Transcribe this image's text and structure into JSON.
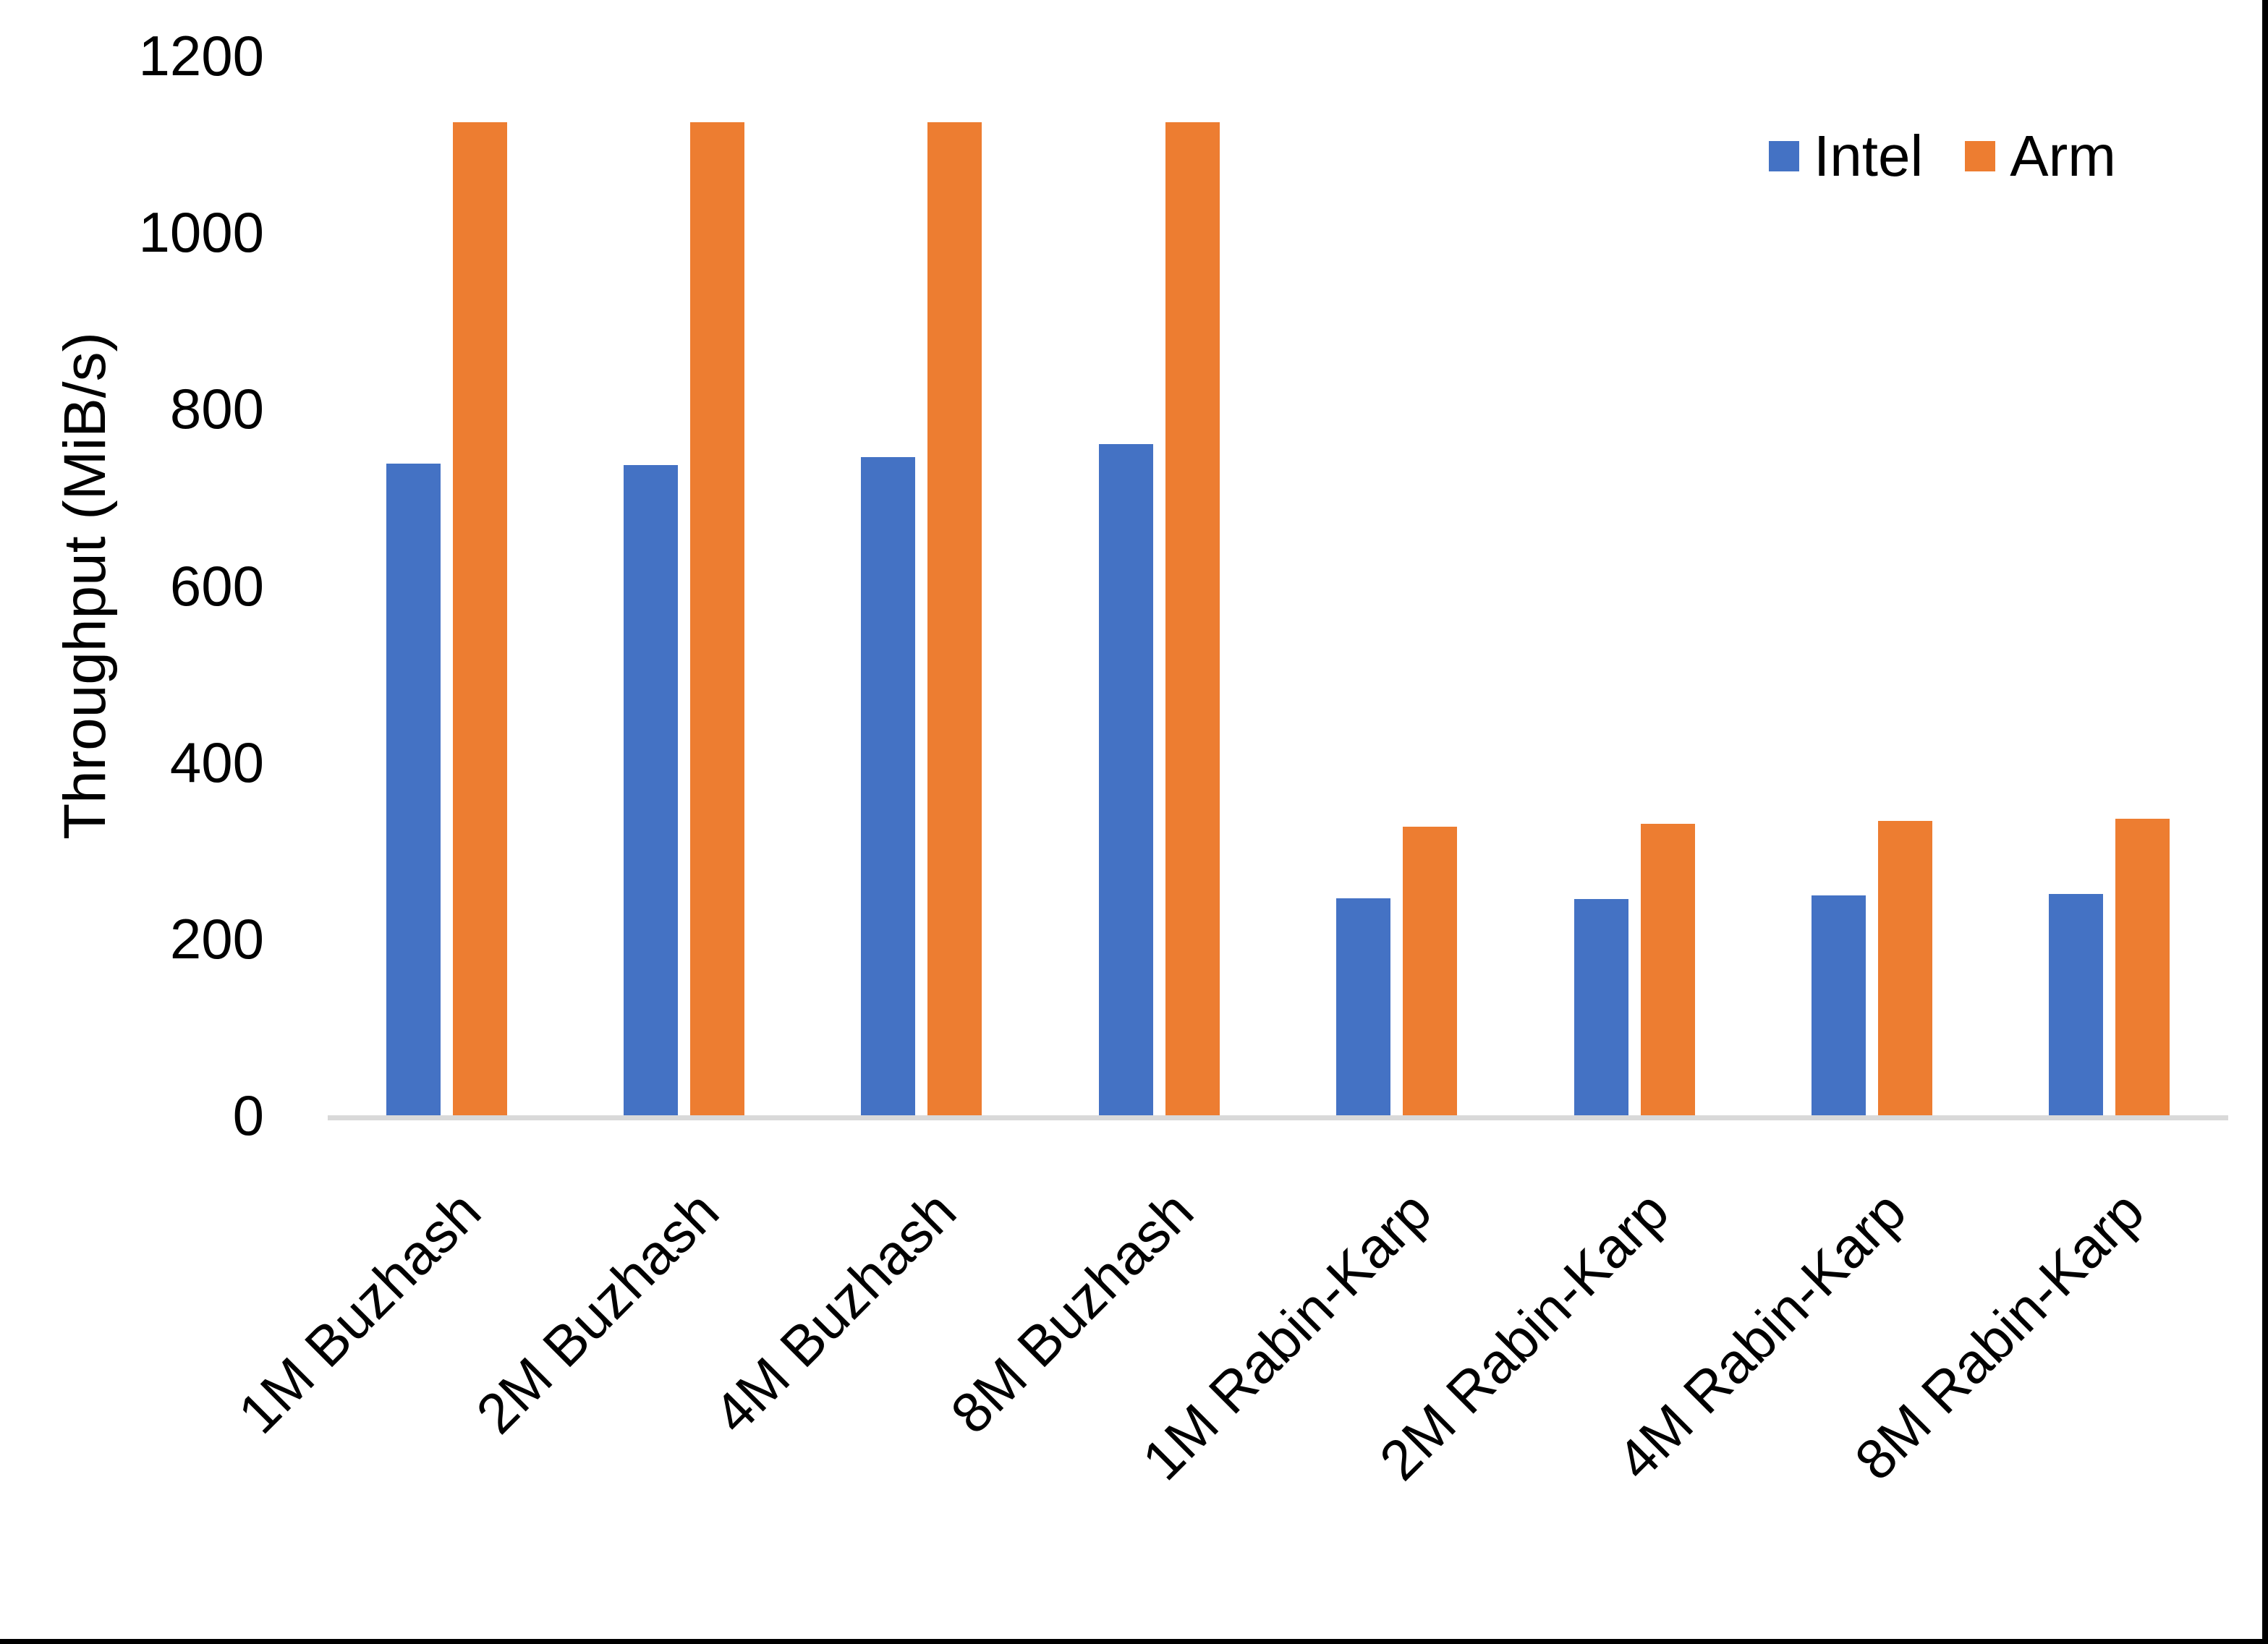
{
  "page": {
    "edge_border_color": "#000000",
    "background_color": "#ffffff",
    "axis_line_color": "#d9d9d9"
  },
  "chart_data": {
    "type": "bar",
    "title": "",
    "xlabel": "",
    "ylabel": "Throughput (MiB/s)",
    "ylim": [
      0,
      1200
    ],
    "yticks": [
      0,
      200,
      400,
      600,
      800,
      1000,
      1200
    ],
    "grid": false,
    "legend_position": "top-right",
    "categories": [
      "1M Buzhash",
      "2M Buzhash",
      "4M Buzhash",
      "8M Buzhash",
      "1M Rabin-Karp",
      "2M Rabin-Karp",
      "4M Rabin-Karp",
      "8M Rabin-Karp"
    ],
    "series": [
      {
        "name": "Intel",
        "color": "#4472C4",
        "values": [
          738,
          736,
          745,
          760,
          246,
          245,
          249,
          251
        ]
      },
      {
        "name": "Arm",
        "color": "#ED7D31",
        "values": [
          1125,
          1125,
          1125,
          1125,
          327,
          330,
          333,
          336
        ]
      }
    ]
  }
}
